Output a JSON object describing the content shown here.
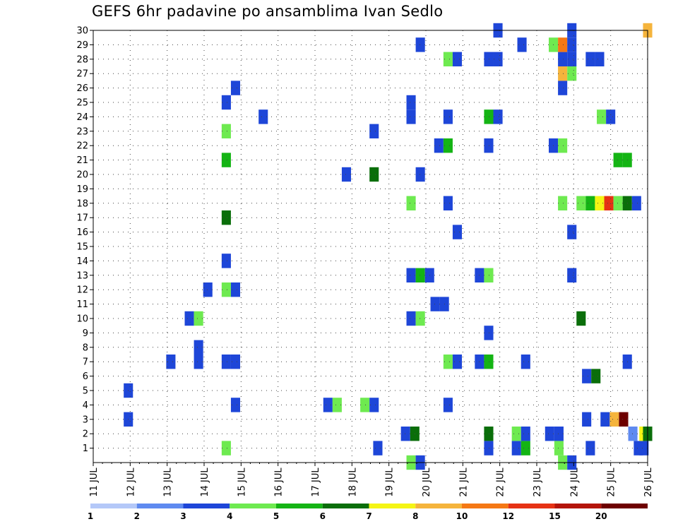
{
  "chart_data": {
    "type": "heatmap",
    "title": "GEFS 6hr padavine po ansamblima Ivan Sedlo",
    "x_tick_labels": [
      "11 JUL",
      "12 JUL",
      "13 JUL",
      "14 JUL",
      "15 JUL",
      "16 JUL",
      "17 JUL",
      "18 JUL",
      "19 JUL",
      "20 JUL",
      "21 JUL",
      "22 JUL",
      "23 JUL",
      "24 JUL",
      "25 JUL",
      "26 JUL"
    ],
    "x_range_days": [
      11,
      26
    ],
    "y_range": [
      0,
      30
    ],
    "y_ticks": [
      1,
      2,
      3,
      4,
      5,
      6,
      7,
      8,
      9,
      10,
      11,
      12,
      13,
      14,
      15,
      16,
      17,
      18,
      19,
      20,
      21,
      22,
      23,
      24,
      25,
      26,
      27,
      28,
      29,
      30
    ],
    "grid": "dotted",
    "legend_position": "bottom",
    "color_scale": {
      "labels": [
        "1",
        "2",
        "3",
        "4",
        "5",
        "6",
        "7",
        "8",
        "10",
        "12",
        "15",
        "20",
        ""
      ],
      "thresholds": [
        1,
        2,
        3,
        4,
        5,
        6,
        7,
        8,
        10,
        12,
        15,
        20
      ],
      "colors": [
        "#b4c8f8",
        "#5f8af0",
        "#1e46d8",
        "#6eea50",
        "#14b414",
        "#0a6e0a",
        "#f5f514",
        "#f5b43c",
        "#f57814",
        "#e63214",
        "#b4140a",
        "#6e0000"
      ]
    },
    "cells": [
      [
        14.6,
        1,
        3
      ],
      [
        18.7,
        1,
        2
      ],
      [
        21.7,
        1,
        2
      ],
      [
        22.45,
        1,
        2
      ],
      [
        22.7,
        1,
        4
      ],
      [
        23.6,
        1,
        3
      ],
      [
        24.45,
        1,
        2
      ],
      [
        25.75,
        1,
        2
      ],
      [
        25.9,
        1,
        2
      ],
      [
        19.45,
        2,
        2
      ],
      [
        19.7,
        2,
        5
      ],
      [
        21.7,
        2,
        5
      ],
      [
        22.45,
        2,
        3
      ],
      [
        22.7,
        2,
        2
      ],
      [
        23.35,
        2,
        2
      ],
      [
        23.6,
        2,
        2
      ],
      [
        25.6,
        2,
        1
      ],
      [
        25.9,
        2,
        6
      ],
      [
        26.0,
        2,
        5
      ],
      [
        11.95,
        3,
        2
      ],
      [
        24.35,
        3,
        2
      ],
      [
        24.85,
        3,
        2
      ],
      [
        25.1,
        3,
        7
      ],
      [
        25.35,
        3,
        11
      ],
      [
        14.85,
        4,
        2
      ],
      [
        17.35,
        4,
        2
      ],
      [
        17.6,
        4,
        3
      ],
      [
        18.35,
        4,
        3
      ],
      [
        18.6,
        4,
        2
      ],
      [
        20.6,
        4,
        2
      ],
      [
        11.95,
        5,
        2
      ],
      [
        24.35,
        6,
        2
      ],
      [
        24.6,
        6,
        5
      ],
      [
        13.1,
        7,
        2
      ],
      [
        13.85,
        7,
        2
      ],
      [
        14.6,
        7,
        2
      ],
      [
        14.85,
        7,
        2
      ],
      [
        20.6,
        7,
        3
      ],
      [
        20.85,
        7,
        2
      ],
      [
        21.45,
        7,
        2
      ],
      [
        21.7,
        7,
        4
      ],
      [
        22.7,
        7,
        2
      ],
      [
        25.45,
        7,
        2
      ],
      [
        13.85,
        8,
        2
      ],
      [
        21.7,
        9,
        2
      ],
      [
        13.6,
        10,
        2
      ],
      [
        13.85,
        10,
        3
      ],
      [
        19.6,
        10,
        2
      ],
      [
        19.85,
        10,
        3
      ],
      [
        24.2,
        10,
        5
      ],
      [
        20.25,
        11,
        2
      ],
      [
        20.5,
        11,
        2
      ],
      [
        14.1,
        12,
        2
      ],
      [
        14.6,
        12,
        3
      ],
      [
        14.85,
        12,
        2
      ],
      [
        19.6,
        13,
        2
      ],
      [
        19.85,
        13,
        4
      ],
      [
        20.1,
        13,
        2
      ],
      [
        21.45,
        13,
        2
      ],
      [
        21.7,
        13,
        3
      ],
      [
        23.95,
        13,
        2
      ],
      [
        14.6,
        14,
        2
      ],
      [
        20.85,
        16,
        2
      ],
      [
        23.95,
        16,
        2
      ],
      [
        14.6,
        17,
        5
      ],
      [
        19.6,
        18,
        3
      ],
      [
        20.6,
        18,
        2
      ],
      [
        23.7,
        18,
        3
      ],
      [
        24.2,
        18,
        3
      ],
      [
        24.45,
        18,
        4
      ],
      [
        24.7,
        18,
        6
      ],
      [
        24.95,
        18,
        9
      ],
      [
        25.2,
        18,
        3
      ],
      [
        25.45,
        18,
        5
      ],
      [
        25.7,
        18,
        2
      ],
      [
        17.85,
        20,
        2
      ],
      [
        18.6,
        20,
        5
      ],
      [
        19.85,
        20,
        2
      ],
      [
        14.6,
        21,
        4
      ],
      [
        25.2,
        21,
        4
      ],
      [
        25.45,
        21,
        4
      ],
      [
        20.35,
        22,
        2
      ],
      [
        20.6,
        22,
        4
      ],
      [
        21.7,
        22,
        2
      ],
      [
        23.45,
        22,
        2
      ],
      [
        23.7,
        22,
        3
      ],
      [
        18.6,
        23,
        2
      ],
      [
        14.6,
        23,
        3
      ],
      [
        15.6,
        24,
        2
      ],
      [
        19.6,
        24,
        2
      ],
      [
        20.6,
        24,
        2
      ],
      [
        21.7,
        24,
        4
      ],
      [
        21.95,
        24,
        2
      ],
      [
        24.75,
        24,
        3
      ],
      [
        25.0,
        24,
        2
      ],
      [
        14.6,
        25,
        2
      ],
      [
        19.6,
        25,
        2
      ],
      [
        14.85,
        26,
        2
      ],
      [
        23.7,
        26,
        2
      ],
      [
        23.7,
        27,
        7
      ],
      [
        23.95,
        27,
        3
      ],
      [
        20.6,
        28,
        3
      ],
      [
        20.85,
        28,
        2
      ],
      [
        21.7,
        28,
        2
      ],
      [
        21.95,
        28,
        2
      ],
      [
        23.7,
        28,
        2
      ],
      [
        23.95,
        28,
        2
      ],
      [
        24.45,
        28,
        2
      ],
      [
        24.7,
        28,
        2
      ],
      [
        19.85,
        29,
        2
      ],
      [
        22.6,
        29,
        2
      ],
      [
        23.45,
        29,
        3
      ],
      [
        23.7,
        29,
        8
      ],
      [
        23.95,
        29,
        2
      ],
      [
        21.95,
        30,
        2
      ],
      [
        23.95,
        30,
        2
      ],
      [
        26.0,
        30,
        7
      ],
      [
        19.6,
        0,
        3
      ],
      [
        19.85,
        0,
        2
      ],
      [
        23.7,
        0,
        3
      ],
      [
        23.95,
        0,
        2
      ]
    ]
  }
}
